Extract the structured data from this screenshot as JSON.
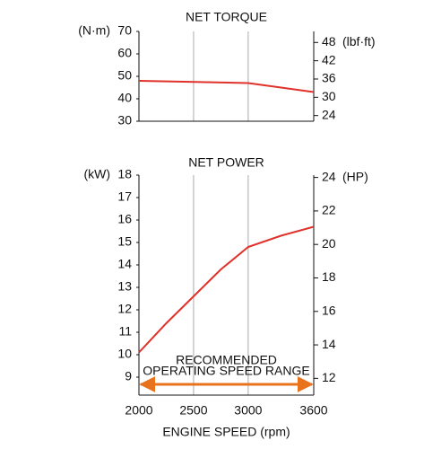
{
  "chart_data": [
    {
      "type": "line",
      "title": "NET TORQUE",
      "ylabel": "(N·m)",
      "y2label": "(lbf·ft)",
      "x": [
        2000,
        3000,
        3600
      ],
      "values": [
        48,
        47,
        43
      ],
      "color": "#e0312a",
      "xlim": [
        2000,
        3600
      ],
      "xticks": [
        2000,
        2500,
        3000,
        3600
      ],
      "show_xtick_labels": false,
      "ylim": [
        30,
        70
      ],
      "yticks": [
        30,
        40,
        50,
        60,
        70
      ],
      "y2lim": [
        22.13,
        51.63
      ],
      "y2ticks": [
        24,
        30,
        36,
        42,
        48
      ],
      "grid": true
    },
    {
      "type": "line",
      "title": "NET POWER",
      "ylabel": "(kW)",
      "y2label": "(HP)",
      "xlabel": "ENGINE SPEED (rpm)",
      "x": [
        2000,
        2250,
        2500,
        2750,
        3000,
        3300,
        3600
      ],
      "values": [
        10.1,
        11.4,
        12.6,
        13.8,
        14.8,
        15.3,
        15.7
      ],
      "color": "#e0312a",
      "xlim": [
        2000,
        3600
      ],
      "xticks": [
        2000,
        2500,
        3000,
        3600
      ],
      "show_xtick_labels": true,
      "ylim": [
        8.2,
        18
      ],
      "yticks": [
        9,
        10,
        11,
        12,
        13,
        14,
        15,
        16,
        17,
        18
      ],
      "y2lim": [
        11.0,
        24.14
      ],
      "y2ticks": [
        12,
        14,
        16,
        18,
        20,
        22,
        24
      ],
      "grid": true,
      "annotation": {
        "text": [
          "RECOMMENDED",
          "OPERATING SPEED RANGE"
        ],
        "x_range": [
          2000,
          3600
        ],
        "color": "#e8731c"
      }
    }
  ]
}
